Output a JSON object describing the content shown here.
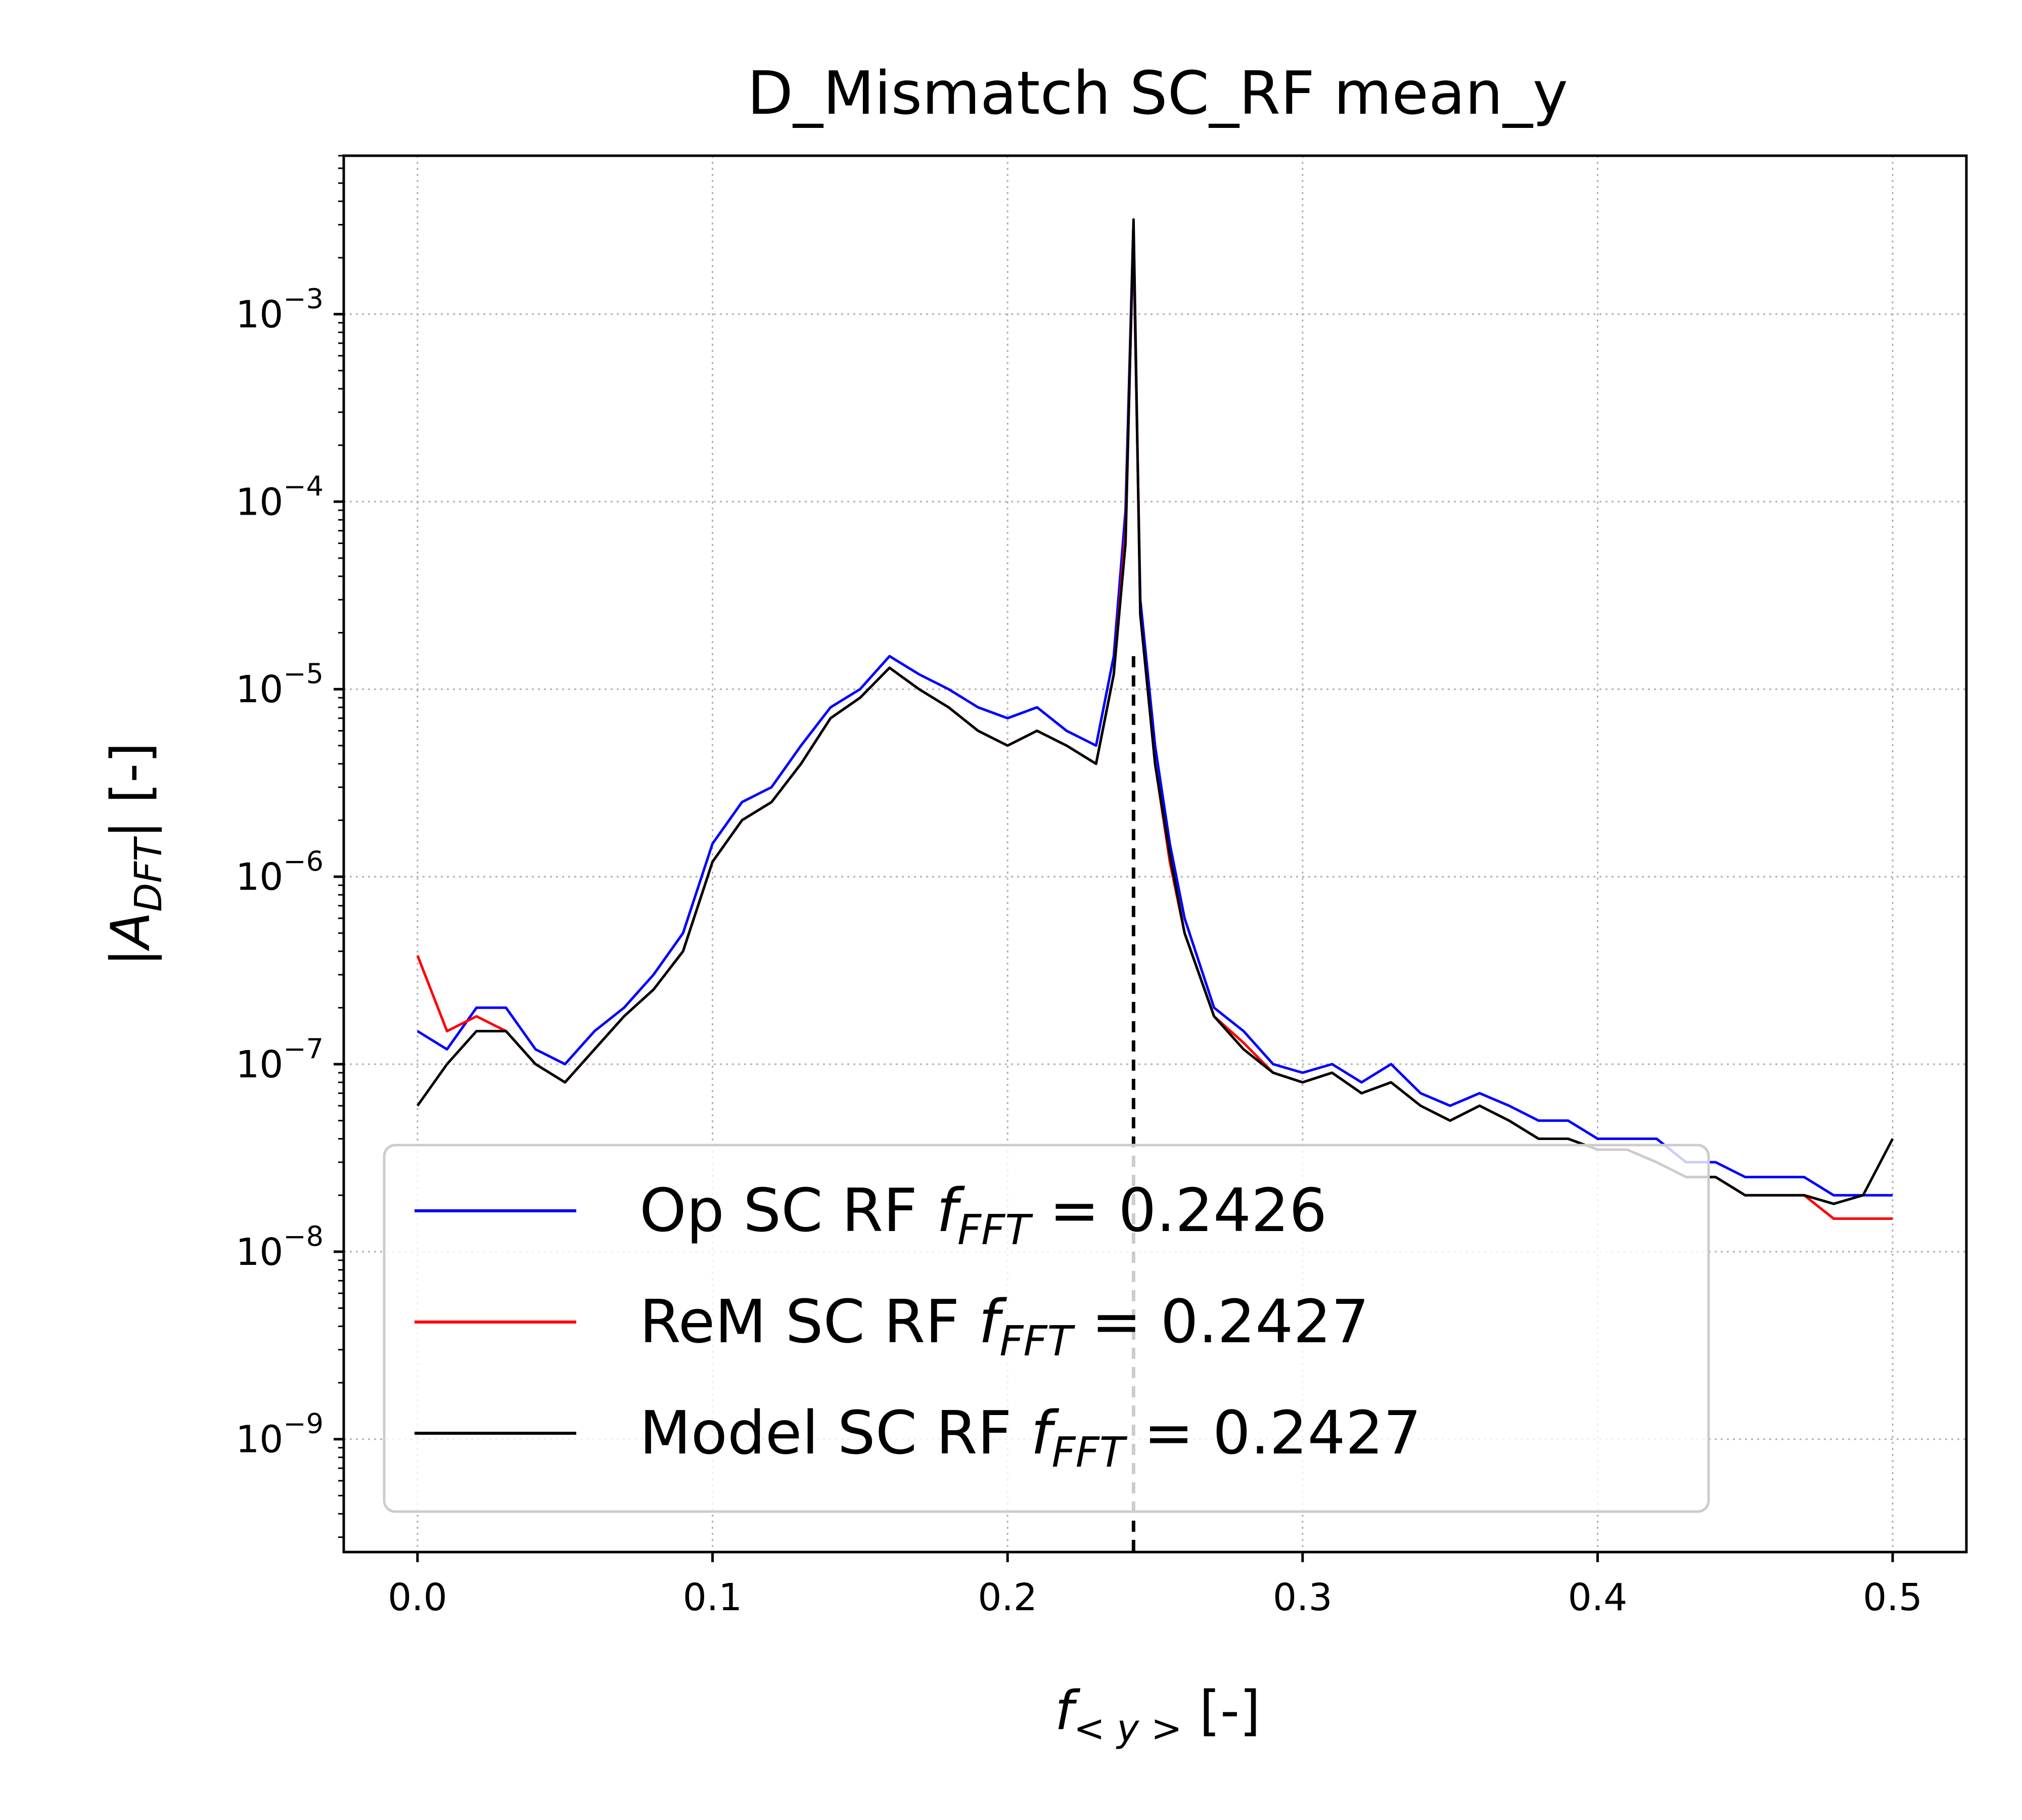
{
  "chart_data": {
    "type": "line",
    "title": "D_Mismatch SC_RF mean_y",
    "xlabel": "f_<y> [-]",
    "ylabel": "|A_DFT| [-]",
    "x_scale": "linear",
    "y_scale": "log",
    "xlim": [
      -0.025,
      0.525
    ],
    "ylim": [
      2.5e-10,
      0.007
    ],
    "x_ticks": [
      0.0,
      0.1,
      0.2,
      0.3,
      0.4,
      0.5
    ],
    "x_tick_labels": [
      "0.0",
      "0.1",
      "0.2",
      "0.3",
      "0.4",
      "0.5"
    ],
    "y_ticks": [
      1e-09,
      1e-08,
      1e-07,
      1e-06,
      1e-05,
      0.0001,
      0.001
    ],
    "y_tick_labels": [
      {
        "base": "10",
        "exp": "−9"
      },
      {
        "base": "10",
        "exp": "−8"
      },
      {
        "base": "10",
        "exp": "−7"
      },
      {
        "base": "10",
        "exp": "−6"
      },
      {
        "base": "10",
        "exp": "−5"
      },
      {
        "base": "10",
        "exp": "−4"
      },
      {
        "base": "10",
        "exp": "−3"
      }
    ],
    "grid": true,
    "legend_position": "lower-left",
    "reference_line": {
      "x": 0.2427,
      "style": "dashed",
      "color": "#000000"
    },
    "series": [
      {
        "name": "Op SC RF",
        "legend_label": "Op SC RF f_FFT = 0.2426",
        "f_fft": "0.2426",
        "color": "#0000ff",
        "x": [
          0.0,
          0.01,
          0.02,
          0.03,
          0.04,
          0.05,
          0.06,
          0.07,
          0.08,
          0.09,
          0.1,
          0.11,
          0.12,
          0.13,
          0.14,
          0.15,
          0.16,
          0.17,
          0.18,
          0.19,
          0.2,
          0.21,
          0.22,
          0.23,
          0.236,
          0.24,
          0.2426,
          0.245,
          0.25,
          0.255,
          0.26,
          0.27,
          0.28,
          0.29,
          0.3,
          0.31,
          0.32,
          0.33,
          0.34,
          0.35,
          0.36,
          0.37,
          0.38,
          0.39,
          0.4,
          0.41,
          0.42,
          0.43,
          0.44,
          0.45,
          0.46,
          0.47,
          0.48,
          0.49,
          0.5
        ],
        "y": [
          1.5e-07,
          1.2e-07,
          2e-07,
          2e-07,
          1.2e-07,
          1e-07,
          1.5e-07,
          2e-07,
          3e-07,
          5e-07,
          1.5e-06,
          2.5e-06,
          3e-06,
          5e-06,
          8e-06,
          1e-05,
          1.5e-05,
          1.2e-05,
          1e-05,
          8e-06,
          7e-06,
          8e-06,
          6e-06,
          5e-06,
          1.5e-05,
          9e-05,
          0.0028,
          3e-05,
          5e-06,
          1.5e-06,
          6e-07,
          2e-07,
          1.5e-07,
          1e-07,
          9e-08,
          1e-07,
          8e-08,
          1e-07,
          7e-08,
          6e-08,
          7e-08,
          6e-08,
          5e-08,
          5e-08,
          4e-08,
          4e-08,
          4e-08,
          3e-08,
          3e-08,
          2.5e-08,
          2.5e-08,
          2.5e-08,
          2e-08,
          2e-08,
          2e-08
        ]
      },
      {
        "name": "ReM SC RF",
        "legend_label": "ReM SC RF f_FFT = 0.2427",
        "f_fft": "0.2427",
        "color": "#ff0000",
        "x": [
          0.0,
          0.01,
          0.02,
          0.03,
          0.04,
          0.05,
          0.06,
          0.07,
          0.08,
          0.09,
          0.1,
          0.11,
          0.12,
          0.13,
          0.14,
          0.15,
          0.16,
          0.17,
          0.18,
          0.19,
          0.2,
          0.21,
          0.22,
          0.23,
          0.236,
          0.24,
          0.2427,
          0.245,
          0.25,
          0.255,
          0.26,
          0.27,
          0.28,
          0.29,
          0.3,
          0.31,
          0.32,
          0.33,
          0.34,
          0.35,
          0.36,
          0.37,
          0.38,
          0.39,
          0.4,
          0.41,
          0.42,
          0.43,
          0.44,
          0.45,
          0.46,
          0.47,
          0.48,
          0.49,
          0.5
        ],
        "y": [
          3.8e-07,
          1.5e-07,
          1.8e-07,
          1.5e-07,
          1e-07,
          8e-08,
          1.2e-07,
          1.8e-07,
          2.5e-07,
          4e-07,
          1.2e-06,
          2e-06,
          2.5e-06,
          4e-06,
          7e-06,
          9e-06,
          1.3e-05,
          1e-05,
          8e-06,
          6e-06,
          5e-06,
          6e-06,
          5e-06,
          4e-06,
          1.2e-05,
          7e-05,
          0.0029,
          2.5e-05,
          4e-06,
          1.2e-06,
          5e-07,
          1.8e-07,
          1.3e-07,
          9e-08,
          8e-08,
          9e-08,
          7e-08,
          8e-08,
          6e-08,
          5e-08,
          6e-08,
          5e-08,
          4e-08,
          4e-08,
          3.5e-08,
          3.5e-08,
          3e-08,
          2.5e-08,
          2.5e-08,
          2e-08,
          2e-08,
          2e-08,
          1.5e-08,
          1.5e-08,
          1.5e-08
        ]
      },
      {
        "name": "Model SC RF",
        "legend_label": "Model SC RF f_FFT = 0.2427",
        "f_fft": "0.2427",
        "color": "#000000",
        "x": [
          0.0,
          0.01,
          0.02,
          0.03,
          0.04,
          0.05,
          0.06,
          0.07,
          0.08,
          0.09,
          0.1,
          0.11,
          0.12,
          0.13,
          0.14,
          0.15,
          0.16,
          0.17,
          0.18,
          0.19,
          0.2,
          0.21,
          0.22,
          0.23,
          0.236,
          0.24,
          0.2427,
          0.245,
          0.25,
          0.255,
          0.26,
          0.27,
          0.28,
          0.29,
          0.3,
          0.31,
          0.32,
          0.33,
          0.34,
          0.35,
          0.36,
          0.37,
          0.38,
          0.39,
          0.4,
          0.41,
          0.42,
          0.43,
          0.44,
          0.45,
          0.46,
          0.47,
          0.48,
          0.49,
          0.5
        ],
        "y": [
          6e-08,
          1e-07,
          1.5e-07,
          1.5e-07,
          1e-07,
          8e-08,
          1.2e-07,
          1.8e-07,
          2.5e-07,
          4e-07,
          1.2e-06,
          2e-06,
          2.5e-06,
          4e-06,
          7e-06,
          9e-06,
          1.3e-05,
          1e-05,
          8e-06,
          6e-06,
          5e-06,
          6e-06,
          5e-06,
          4e-06,
          1.2e-05,
          6e-05,
          0.0032,
          2.5e-05,
          4e-06,
          1.3e-06,
          5e-07,
          1.8e-07,
          1.2e-07,
          9e-08,
          8e-08,
          9e-08,
          7e-08,
          8e-08,
          6e-08,
          5e-08,
          6e-08,
          5e-08,
          4e-08,
          4e-08,
          3.5e-08,
          3.5e-08,
          3e-08,
          2.5e-08,
          2.5e-08,
          2e-08,
          2e-08,
          2e-08,
          1.8e-08,
          2e-08,
          4e-08
        ]
      }
    ]
  }
}
